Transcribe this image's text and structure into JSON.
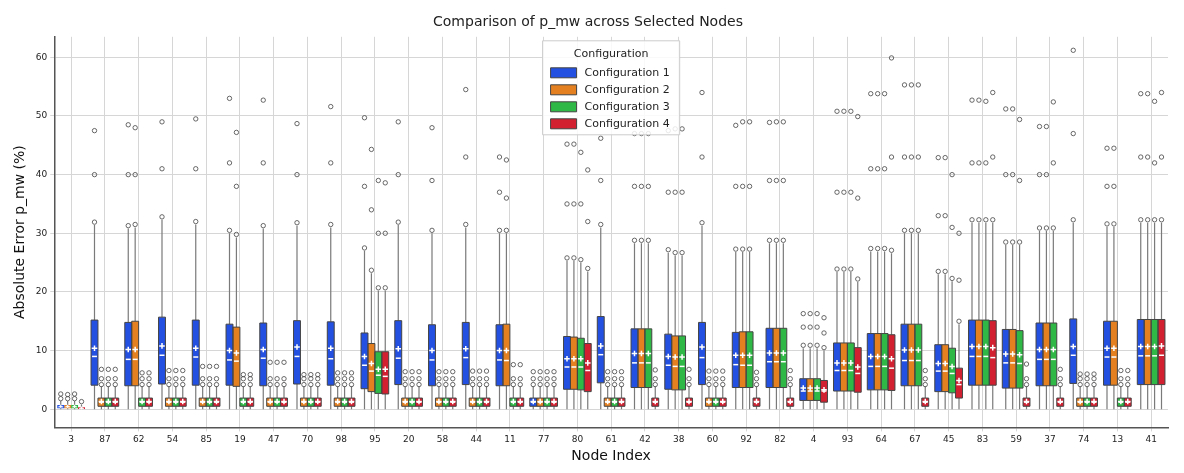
{
  "chart_data": {
    "type": "box",
    "title": "Comparison of p_mw across Selected Nodes",
    "xlabel": "Node Index",
    "ylabel": "Absolute Error p_mw (%)",
    "legend_title": "Configuration",
    "legend": "top",
    "grid": true,
    "categories": [
      "3",
      "87",
      "62",
      "54",
      "85",
      "19",
      "47",
      "70",
      "98",
      "95",
      "20",
      "58",
      "44",
      "11",
      "77",
      "80",
      "61",
      "42",
      "38",
      "60",
      "92",
      "82",
      "4",
      "93",
      "64",
      "67",
      "45",
      "83",
      "59",
      "37",
      "74",
      "13",
      "41"
    ],
    "ylim": [
      -3.1,
      63.5
    ],
    "yticks": [
      0,
      10,
      20,
      30,
      40,
      50,
      60
    ],
    "series": [
      {
        "name": "Configuration 1",
        "color": "#2350e0",
        "boxes": [
          {
            "low": 0,
            "q1": 0.15,
            "median": 0.4,
            "q3": 0.7,
            "high": 1.4,
            "mean": 0.5,
            "outliers": [
              1.8,
              2.6
            ]
          },
          {
            "low": 0,
            "q1": 4.1,
            "median": 9,
            "q3": 15.2,
            "high": 31.4,
            "mean": 10.4,
            "outliers": [
              31.9,
              40,
              47.5
            ]
          },
          {
            "low": 0,
            "q1": 4,
            "median": 8.5,
            "q3": 14.8,
            "high": 30.8,
            "mean": 10.2,
            "outliers": [
              31.3,
              40,
              48.5
            ]
          },
          {
            "low": 0,
            "q1": 4.3,
            "median": 9.2,
            "q3": 15.7,
            "high": 32.3,
            "mean": 10.8,
            "outliers": [
              32.8,
              41,
              49
            ]
          },
          {
            "low": 0,
            "q1": 4.1,
            "median": 8.9,
            "q3": 15.2,
            "high": 31.5,
            "mean": 10.4,
            "outliers": [
              32,
              41,
              49.5
            ]
          },
          {
            "low": 0,
            "q1": 4.1,
            "median": 8.4,
            "q3": 14.5,
            "high": 30,
            "mean": 10,
            "outliers": [
              30.5,
              42,
              53
            ]
          },
          {
            "low": 0,
            "q1": 4,
            "median": 8.7,
            "q3": 14.7,
            "high": 30.8,
            "mean": 10.2,
            "outliers": [
              31.3,
              42,
              52.7
            ]
          },
          {
            "low": 0,
            "q1": 4.3,
            "median": 9,
            "q3": 15.1,
            "high": 31.3,
            "mean": 10.6,
            "outliers": [
              31.8,
              40,
              48.7
            ]
          },
          {
            "low": 0,
            "q1": 4.1,
            "median": 8.6,
            "q3": 14.9,
            "high": 31,
            "mean": 10.4,
            "outliers": [
              31.5,
              42,
              51.6
            ]
          },
          {
            "low": 0,
            "q1": 3.5,
            "median": 7.5,
            "q3": 13,
            "high": 27,
            "mean": 9,
            "outliers": [
              27.5,
              38,
              49.7
            ]
          },
          {
            "low": 0,
            "q1": 4.2,
            "median": 8.7,
            "q3": 15.1,
            "high": 31.4,
            "mean": 10.3,
            "outliers": [
              31.9,
              40,
              49
            ]
          },
          {
            "low": 0,
            "q1": 4,
            "median": 8.4,
            "q3": 14.4,
            "high": 30,
            "mean": 10,
            "outliers": [
              30.5,
              39,
              48
            ]
          },
          {
            "low": 0,
            "q1": 4.2,
            "median": 8.8,
            "q3": 14.8,
            "high": 31,
            "mean": 10.3,
            "outliers": [
              31.5,
              43,
              54.5
            ]
          },
          {
            "low": 0,
            "q1": 4,
            "median": 8.4,
            "q3": 14.4,
            "high": 30,
            "mean": 10,
            "outliers": [
              30.5,
              37,
              43
            ]
          },
          {
            "low": 0,
            "q1": 0.5,
            "median": 1.2,
            "q3": 1.9,
            "high": 3.9,
            "mean": 1.3,
            "outliers": [
              4.2,
              5.2,
              6.4
            ]
          },
          {
            "low": 0,
            "q1": 3.4,
            "median": 7.2,
            "q3": 12.4,
            "high": 25.3,
            "mean": 8.6,
            "outliers": [
              25.8,
              35,
              45.2
            ]
          },
          {
            "low": 0,
            "q1": 4.5,
            "median": 9.3,
            "q3": 15.8,
            "high": 31,
            "mean": 10.8,
            "outliers": [
              31.5,
              39,
              46.2
            ]
          },
          {
            "low": 0,
            "q1": 3.7,
            "median": 7.9,
            "q3": 13.7,
            "high": 28.3,
            "mean": 9.5,
            "outliers": [
              28.8,
              38,
              47
            ]
          },
          {
            "low": 0,
            "q1": 3.4,
            "median": 7.5,
            "q3": 12.8,
            "high": 26.7,
            "mean": 9,
            "outliers": [
              27.2,
              37,
              47.5
            ]
          },
          {
            "low": 0,
            "q1": 4.2,
            "median": 8.8,
            "q3": 14.8,
            "high": 31.3,
            "mean": 10.6,
            "outliers": [
              31.8,
              43,
              54
            ]
          },
          {
            "low": 0,
            "q1": 3.7,
            "median": 7.6,
            "q3": 13.1,
            "high": 26.8,
            "mean": 9.2,
            "outliers": [
              27.3,
              38,
              48.4
            ]
          },
          {
            "low": 0,
            "q1": 3.7,
            "median": 8.1,
            "q3": 13.8,
            "high": 28.3,
            "mean": 9.6,
            "outliers": [
              28.8,
              39,
              48.9
            ]
          },
          {
            "low": 0,
            "q1": 1.5,
            "median": 3.1,
            "q3": 5.2,
            "high": 10.4,
            "mean": 3.6,
            "outliers": [
              10.9,
              14,
              16.3
            ]
          },
          {
            "low": 0,
            "q1": 3.1,
            "median": 6.6,
            "q3": 11.3,
            "high": 23.4,
            "mean": 7.9,
            "outliers": [
              23.9,
              37,
              50.8
            ]
          },
          {
            "low": 0,
            "q1": 3.3,
            "median": 7.3,
            "q3": 12.9,
            "high": 26.9,
            "mean": 9,
            "outliers": [
              27.4,
              41,
              53.8
            ]
          },
          {
            "low": 0,
            "q1": 4,
            "median": 8.3,
            "q3": 14.5,
            "high": 30,
            "mean": 10.1,
            "outliers": [
              30.5,
              43,
              55.3
            ]
          },
          {
            "low": 0,
            "q1": 3,
            "median": 6.5,
            "q3": 11,
            "high": 23,
            "mean": 7.8,
            "outliers": [
              23.5,
              33,
              42.9
            ]
          },
          {
            "low": 0,
            "q1": 4.1,
            "median": 9,
            "q3": 15.2,
            "high": 31.8,
            "mean": 10.7,
            "outliers": [
              32.3,
              42,
              52.7
            ]
          },
          {
            "low": 0,
            "q1": 3.6,
            "median": 7.9,
            "q3": 13.6,
            "high": 28,
            "mean": 9.4,
            "outliers": [
              28.5,
              40,
              51.2
            ]
          },
          {
            "low": 0,
            "q1": 4,
            "median": 8.5,
            "q3": 14.7,
            "high": 30.4,
            "mean": 10.2,
            "outliers": [
              30.9,
              40,
              48.2
            ]
          },
          {
            "low": 0,
            "q1": 4.4,
            "median": 9.2,
            "q3": 15.4,
            "high": 31.8,
            "mean": 10.7,
            "outliers": [
              32.3,
              47,
              61.2
            ]
          },
          {
            "low": 0,
            "q1": 4.1,
            "median": 8.9,
            "q3": 15,
            "high": 31.1,
            "mean": 10.4,
            "outliers": [
              31.6,
              38,
              44.5
            ]
          },
          {
            "low": 0,
            "q1": 4.2,
            "median": 9.1,
            "q3": 15.3,
            "high": 31.8,
            "mean": 10.7,
            "outliers": [
              32.3,
              43,
              53.8
            ]
          }
        ]
      },
      {
        "name": "Configuration 2",
        "color": "#e58020",
        "boxes": [
          {
            "low": 0,
            "q1": 0.15,
            "median": 0.4,
            "q3": 0.7,
            "high": 1.4,
            "mean": 0.5,
            "outliers": [
              1.8,
              2.5
            ]
          },
          {
            "low": 0,
            "q1": 0.5,
            "median": 1.2,
            "q3": 1.9,
            "high": 3.9,
            "mean": 1.3,
            "outliers": [
              4.2,
              5.2,
              6.8
            ]
          },
          {
            "low": 0,
            "q1": 4,
            "median": 8.5,
            "q3": 15,
            "high": 31,
            "mean": 10.2,
            "outliers": [
              31.5,
              40,
              48
            ]
          },
          {
            "low": 0,
            "q1": 0.5,
            "median": 1.2,
            "q3": 1.9,
            "high": 3.9,
            "mean": 1.3,
            "outliers": [
              4.2,
              5.2,
              6.6
            ]
          },
          {
            "low": 0,
            "q1": 0.5,
            "median": 1.2,
            "q3": 1.9,
            "high": 3.9,
            "mean": 1.3,
            "outliers": [
              4.2,
              5.2,
              7.3
            ]
          },
          {
            "low": 0,
            "q1": 3.9,
            "median": 8.2,
            "q3": 14,
            "high": 29.3,
            "mean": 9.6,
            "outliers": [
              29.8,
              38,
              47.2
            ]
          },
          {
            "low": 0,
            "q1": 0.5,
            "median": 1.2,
            "q3": 1.9,
            "high": 3.9,
            "mean": 1.3,
            "outliers": [
              4.2,
              5.2,
              8
            ]
          },
          {
            "low": 0,
            "q1": 0.5,
            "median": 1.2,
            "q3": 1.9,
            "high": 3.9,
            "mean": 1.3,
            "outliers": [
              4.2,
              5.2,
              5.9
            ]
          },
          {
            "low": 0,
            "q1": 0.5,
            "median": 1.2,
            "q3": 1.9,
            "high": 3.9,
            "mean": 1.3,
            "outliers": [
              4.2,
              5.2,
              6.2
            ]
          },
          {
            "low": 0,
            "q1": 3,
            "median": 6.5,
            "q3": 11.2,
            "high": 23.2,
            "mean": 7.8,
            "outliers": [
              23.7,
              34,
              44.3
            ]
          },
          {
            "low": 0,
            "q1": 0.5,
            "median": 1.2,
            "q3": 1.9,
            "high": 3.9,
            "mean": 1.3,
            "outliers": [
              4.2,
              5.2,
              6.4
            ]
          },
          {
            "low": 0,
            "q1": 0.5,
            "median": 1.2,
            "q3": 1.9,
            "high": 3.9,
            "mean": 1.3,
            "outliers": [
              4.2,
              5.2,
              6.4
            ]
          },
          {
            "low": 0,
            "q1": 0.5,
            "median": 1.2,
            "q3": 1.9,
            "high": 3.9,
            "mean": 1.3,
            "outliers": [
              4.2,
              5.2,
              6.5
            ]
          },
          {
            "low": 0,
            "q1": 4,
            "median": 8.3,
            "q3": 14.5,
            "high": 30,
            "mean": 10,
            "outliers": [
              30.5,
              36,
              42.5
            ]
          },
          {
            "low": 0,
            "q1": 0.5,
            "median": 1.2,
            "q3": 1.9,
            "high": 3.9,
            "mean": 1.3,
            "outliers": [
              4.2,
              5.2,
              6.4
            ]
          },
          {
            "low": 0,
            "q1": 3.4,
            "median": 7.2,
            "q3": 12.3,
            "high": 25.3,
            "mean": 8.6,
            "outliers": [
              25.8,
              35,
              45.2
            ]
          },
          {
            "low": 0,
            "q1": 0.5,
            "median": 1.2,
            "q3": 1.9,
            "high": 3.9,
            "mean": 1.3,
            "outliers": [
              4.2,
              5.2,
              6.4
            ]
          },
          {
            "low": 0,
            "q1": 3.7,
            "median": 7.9,
            "q3": 13.7,
            "high": 28.3,
            "mean": 9.5,
            "outliers": [
              28.8,
              38,
              47
            ]
          },
          {
            "low": 0,
            "q1": 3.3,
            "median": 7.3,
            "q3": 12.5,
            "high": 26.2,
            "mean": 8.9,
            "outliers": [
              26.7,
              37,
              47.8
            ]
          },
          {
            "low": 0,
            "q1": 0.5,
            "median": 1.2,
            "q3": 1.9,
            "high": 3.9,
            "mean": 1.3,
            "outliers": [
              4.2,
              5.2,
              6.5
            ]
          },
          {
            "low": 0,
            "q1": 3.7,
            "median": 7.5,
            "q3": 13.2,
            "high": 26.8,
            "mean": 9.2,
            "outliers": [
              27.3,
              38,
              49
            ]
          },
          {
            "low": 0,
            "q1": 3.7,
            "median": 8.1,
            "q3": 13.8,
            "high": 28.3,
            "mean": 9.6,
            "outliers": [
              28.8,
              39,
              49
            ]
          },
          {
            "low": 0,
            "q1": 1.5,
            "median": 3.1,
            "q3": 5.2,
            "high": 10.4,
            "mean": 3.6,
            "outliers": [
              10.9,
              14,
              16.3
            ]
          },
          {
            "low": 0,
            "q1": 3.1,
            "median": 6.6,
            "q3": 11.3,
            "high": 23.4,
            "mean": 7.9,
            "outliers": [
              23.9,
              37,
              50.8
            ]
          },
          {
            "low": 0,
            "q1": 3.3,
            "median": 7.3,
            "q3": 12.9,
            "high": 26.9,
            "mean": 9,
            "outliers": [
              27.4,
              41,
              53.8
            ]
          },
          {
            "low": 0,
            "q1": 4,
            "median": 8.3,
            "q3": 14.5,
            "high": 30,
            "mean": 10.1,
            "outliers": [
              30.5,
              43,
              55.3
            ]
          },
          {
            "low": 0,
            "q1": 3,
            "median": 6.5,
            "q3": 11,
            "high": 23,
            "mean": 7.8,
            "outliers": [
              23.5,
              33,
              42.9
            ]
          },
          {
            "low": 0,
            "q1": 4.1,
            "median": 9,
            "q3": 15.2,
            "high": 31.8,
            "mean": 10.7,
            "outliers": [
              32.3,
              42,
              52.7
            ]
          },
          {
            "low": 0,
            "q1": 3.6,
            "median": 7.9,
            "q3": 13.6,
            "high": 28,
            "mean": 9.4,
            "outliers": [
              28.5,
              40,
              51.2
            ]
          },
          {
            "low": 0,
            "q1": 4,
            "median": 8.5,
            "q3": 14.7,
            "high": 30.4,
            "mean": 10.2,
            "outliers": [
              30.9,
              40,
              48.2
            ]
          },
          {
            "low": 0,
            "q1": 0.5,
            "median": 1.2,
            "q3": 1.9,
            "high": 3.9,
            "mean": 1.3,
            "outliers": [
              4.2,
              5.2,
              6
            ]
          },
          {
            "low": 0,
            "q1": 4.1,
            "median": 8.9,
            "q3": 15,
            "high": 31.1,
            "mean": 10.4,
            "outliers": [
              31.6,
              38,
              44.5
            ]
          },
          {
            "low": 0,
            "q1": 4.2,
            "median": 9.1,
            "q3": 15.3,
            "high": 31.8,
            "mean": 10.7,
            "outliers": [
              32.3,
              43,
              53.8
            ]
          }
        ]
      },
      {
        "name": "Configuration 3",
        "color": "#2fb845",
        "boxes": [
          {
            "low": 0,
            "q1": 0.15,
            "median": 0.4,
            "q3": 0.7,
            "high": 1.4,
            "mean": 0.5,
            "outliers": [
              1.8,
              2.6
            ]
          },
          {
            "low": 0,
            "q1": 0.5,
            "median": 1.2,
            "q3": 1.9,
            "high": 3.9,
            "mean": 1.3,
            "outliers": [
              4.2,
              5.2,
              6.8
            ]
          },
          {
            "low": 0,
            "q1": 0.5,
            "median": 1.2,
            "q3": 1.9,
            "high": 3.9,
            "mean": 1.3,
            "outliers": [
              4.2,
              5.2,
              6.2
            ]
          },
          {
            "low": 0,
            "q1": 0.5,
            "median": 1.2,
            "q3": 1.9,
            "high": 3.9,
            "mean": 1.3,
            "outliers": [
              4.2,
              5.2,
              6.6
            ]
          },
          {
            "low": 0,
            "q1": 0.5,
            "median": 1.2,
            "q3": 1.9,
            "high": 3.9,
            "mean": 1.3,
            "outliers": [
              4.2,
              5.2,
              7.3
            ]
          },
          {
            "low": 0,
            "q1": 0.5,
            "median": 1.2,
            "q3": 1.9,
            "high": 3.9,
            "mean": 1.3,
            "outliers": [
              4.2,
              5.2,
              5.9
            ]
          },
          {
            "low": 0,
            "q1": 0.5,
            "median": 1.2,
            "q3": 1.9,
            "high": 3.9,
            "mean": 1.3,
            "outliers": [
              4.2,
              5.2,
              8
            ]
          },
          {
            "low": 0,
            "q1": 0.5,
            "median": 1.2,
            "q3": 1.9,
            "high": 3.9,
            "mean": 1.3,
            "outliers": [
              4.2,
              5.2,
              5.9
            ]
          },
          {
            "low": 0,
            "q1": 0.5,
            "median": 1.2,
            "q3": 1.9,
            "high": 3.9,
            "mean": 1.3,
            "outliers": [
              4.2,
              5.2,
              6.2
            ]
          },
          {
            "low": 0,
            "q1": 2.7,
            "median": 5.8,
            "q3": 9.8,
            "high": 20.2,
            "mean": 6.8,
            "outliers": [
              20.7,
              30,
              39
            ]
          },
          {
            "low": 0,
            "q1": 0.5,
            "median": 1.2,
            "q3": 1.9,
            "high": 3.9,
            "mean": 1.3,
            "outliers": [
              4.2,
              5.2,
              6.4
            ]
          },
          {
            "low": 0,
            "q1": 0.5,
            "median": 1.2,
            "q3": 1.9,
            "high": 3.9,
            "mean": 1.3,
            "outliers": [
              4.2,
              5.2,
              6.4
            ]
          },
          {
            "low": 0,
            "q1": 0.5,
            "median": 1.2,
            "q3": 1.9,
            "high": 3.9,
            "mean": 1.3,
            "outliers": [
              4.2,
              5.2,
              6.5
            ]
          },
          {
            "low": 0,
            "q1": 0.5,
            "median": 1.2,
            "q3": 1.9,
            "high": 3.9,
            "mean": 1.3,
            "outliers": [
              4.2,
              5.2,
              7.6
            ]
          },
          {
            "low": 0,
            "q1": 0.5,
            "median": 1.2,
            "q3": 1.9,
            "high": 3.9,
            "mean": 1.3,
            "outliers": [
              4.2,
              5.2,
              6.4
            ]
          },
          {
            "low": 0,
            "q1": 3.3,
            "median": 7.2,
            "q3": 12.1,
            "high": 25,
            "mean": 8.6,
            "outliers": [
              25.5,
              35,
              43.8
            ]
          },
          {
            "low": 0,
            "q1": 0.5,
            "median": 1.2,
            "q3": 1.9,
            "high": 3.9,
            "mean": 1.3,
            "outliers": [
              4.2,
              5.2,
              6.4
            ]
          },
          {
            "low": 0,
            "q1": 3.7,
            "median": 7.9,
            "q3": 13.7,
            "high": 28.3,
            "mean": 9.5,
            "outliers": [
              28.8,
              38,
              47
            ]
          },
          {
            "low": 0,
            "q1": 3.3,
            "median": 7.3,
            "q3": 12.5,
            "high": 26.2,
            "mean": 8.9,
            "outliers": [
              26.7,
              37,
              47.8
            ]
          },
          {
            "low": 0,
            "q1": 0.5,
            "median": 1.2,
            "q3": 1.9,
            "high": 3.9,
            "mean": 1.3,
            "outliers": [
              4.2,
              5.2,
              6.5
            ]
          },
          {
            "low": 0,
            "q1": 3.7,
            "median": 7.5,
            "q3": 13.2,
            "high": 26.8,
            "mean": 9.2,
            "outliers": [
              27.3,
              38,
              49
            ]
          },
          {
            "low": 0,
            "q1": 3.7,
            "median": 8.1,
            "q3": 13.8,
            "high": 28.3,
            "mean": 9.6,
            "outliers": [
              28.8,
              39,
              49
            ]
          },
          {
            "low": 0,
            "q1": 1.5,
            "median": 3.1,
            "q3": 5.2,
            "high": 10.4,
            "mean": 3.6,
            "outliers": [
              10.9,
              14,
              16.3
            ]
          },
          {
            "low": 0,
            "q1": 3.1,
            "median": 6.6,
            "q3": 11.3,
            "high": 23.4,
            "mean": 7.9,
            "outliers": [
              23.9,
              37,
              50.8
            ]
          },
          {
            "low": 0,
            "q1": 3.3,
            "median": 7.3,
            "q3": 12.9,
            "high": 26.9,
            "mean": 9,
            "outliers": [
              27.4,
              41,
              53.8
            ]
          },
          {
            "low": 0,
            "q1": 4,
            "median": 8.3,
            "q3": 14.5,
            "high": 30,
            "mean": 10.1,
            "outliers": [
              30.5,
              43,
              55.3
            ]
          },
          {
            "low": 0,
            "q1": 2.8,
            "median": 6.1,
            "q3": 10.4,
            "high": 21.8,
            "mean": 7.3,
            "outliers": [
              22.3,
              31,
              40
            ]
          },
          {
            "low": 0,
            "q1": 4.1,
            "median": 9,
            "q3": 15.2,
            "high": 31.8,
            "mean": 10.7,
            "outliers": [
              32.3,
              42,
              52.5
            ]
          },
          {
            "low": 0,
            "q1": 3.6,
            "median": 7.8,
            "q3": 13.4,
            "high": 28,
            "mean": 9.3,
            "outliers": [
              28.5,
              39,
              49.4
            ]
          },
          {
            "low": 0,
            "q1": 4,
            "median": 8.5,
            "q3": 14.7,
            "high": 30.4,
            "mean": 10.2,
            "outliers": [
              30.9,
              42,
              52.4
            ]
          },
          {
            "low": 0,
            "q1": 0.5,
            "median": 1.2,
            "q3": 1.9,
            "high": 3.9,
            "mean": 1.3,
            "outliers": [
              4.2,
              5.2,
              6
            ]
          },
          {
            "low": 0,
            "q1": 0.5,
            "median": 1.2,
            "q3": 1.9,
            "high": 3.9,
            "mean": 1.3,
            "outliers": [
              4.2,
              5.2,
              6.6
            ]
          },
          {
            "low": 0,
            "q1": 4.2,
            "median": 9.1,
            "q3": 15.3,
            "high": 31.8,
            "mean": 10.7,
            "outliers": [
              32.3,
              42,
              52.5
            ]
          }
        ]
      },
      {
        "name": "Configuration 4",
        "color": "#d22030",
        "boxes": [
          {
            "low": 0,
            "q1": 0.05,
            "median": 0.15,
            "q3": 0.35,
            "high": 0.8,
            "mean": 0.2,
            "outliers": [
              1.3
            ]
          },
          {
            "low": 0,
            "q1": 0.5,
            "median": 1.2,
            "q3": 1.9,
            "high": 3.9,
            "mean": 1.3,
            "outliers": [
              4.2,
              5.2,
              6.8
            ]
          },
          {
            "low": 0,
            "q1": 0.5,
            "median": 1.2,
            "q3": 1.9,
            "high": 3.9,
            "mean": 1.3,
            "outliers": [
              4.2,
              5.2,
              6.2
            ]
          },
          {
            "low": 0,
            "q1": 0.5,
            "median": 1.2,
            "q3": 1.9,
            "high": 3.9,
            "mean": 1.3,
            "outliers": [
              4.2,
              5.2,
              6.6
            ]
          },
          {
            "low": 0,
            "q1": 0.5,
            "median": 1.2,
            "q3": 1.9,
            "high": 3.9,
            "mean": 1.3,
            "outliers": [
              4.2,
              5.2,
              7.3
            ]
          },
          {
            "low": 0,
            "q1": 0.5,
            "median": 1.2,
            "q3": 1.9,
            "high": 3.9,
            "mean": 1.3,
            "outliers": [
              4.2,
              5.2,
              5.9
            ]
          },
          {
            "low": 0,
            "q1": 0.5,
            "median": 1.2,
            "q3": 1.9,
            "high": 3.9,
            "mean": 1.3,
            "outliers": [
              4.2,
              5.2,
              8
            ]
          },
          {
            "low": 0,
            "q1": 0.5,
            "median": 1.2,
            "q3": 1.9,
            "high": 3.9,
            "mean": 1.3,
            "outliers": [
              4.2,
              5.2,
              5.9
            ]
          },
          {
            "low": 0,
            "q1": 0.5,
            "median": 1.2,
            "q3": 1.9,
            "high": 3.9,
            "mean": 1.3,
            "outliers": [
              4.2,
              5.2,
              6.2
            ]
          },
          {
            "low": 0,
            "q1": 2.6,
            "median": 5.6,
            "q3": 9.8,
            "high": 20.2,
            "mean": 6.8,
            "outliers": [
              20.7,
              30,
              38.6
            ]
          },
          {
            "low": 0,
            "q1": 0.5,
            "median": 1.2,
            "q3": 1.9,
            "high": 3.9,
            "mean": 1.3,
            "outliers": [
              4.2,
              5.2,
              6.4
            ]
          },
          {
            "low": 0,
            "q1": 0.5,
            "median": 1.2,
            "q3": 1.9,
            "high": 3.9,
            "mean": 1.3,
            "outliers": [
              4.2,
              5.2,
              6.4
            ]
          },
          {
            "low": 0,
            "q1": 0.5,
            "median": 1.2,
            "q3": 1.9,
            "high": 3.9,
            "mean": 1.3,
            "outliers": [
              4.2,
              5.2,
              6.5
            ]
          },
          {
            "low": 0,
            "q1": 0.5,
            "median": 1.2,
            "q3": 1.9,
            "high": 3.9,
            "mean": 1.3,
            "outliers": [
              4.2,
              5.2,
              7.6
            ]
          },
          {
            "low": 0,
            "q1": 0.5,
            "median": 1.2,
            "q3": 1.9,
            "high": 3.9,
            "mean": 1.3,
            "outliers": [
              4.2,
              5.2,
              6.4
            ]
          },
          {
            "low": 0,
            "q1": 3,
            "median": 6.6,
            "q3": 11.2,
            "high": 23.5,
            "mean": 7.9,
            "outliers": [
              24,
              32,
              40.8
            ]
          },
          {
            "low": 0,
            "q1": 0.5,
            "median": 1.2,
            "q3": 1.9,
            "high": 3.9,
            "mean": 1.3,
            "outliers": [
              4.2,
              5.2,
              6.4
            ]
          },
          {
            "low": 0,
            "q1": 0.5,
            "median": 1.2,
            "q3": 1.9,
            "high": 3.9,
            "mean": 1.3,
            "outliers": [
              4.2,
              5.2,
              6.7
            ]
          },
          {
            "low": 0,
            "q1": 0.5,
            "median": 1.2,
            "q3": 1.9,
            "high": 3.9,
            "mean": 1.3,
            "outliers": [
              4.2,
              5.2,
              6.8
            ]
          },
          {
            "low": 0,
            "q1": 0.5,
            "median": 1.2,
            "q3": 1.9,
            "high": 3.9,
            "mean": 1.3,
            "outliers": [
              4.2,
              5.2,
              6.5
            ]
          },
          {
            "low": 0,
            "q1": 0.5,
            "median": 1.2,
            "q3": 1.9,
            "high": 3.9,
            "mean": 1.3,
            "outliers": [
              4.2,
              5.2,
              6.3
            ]
          },
          {
            "low": 0,
            "q1": 0.5,
            "median": 1.2,
            "q3": 1.9,
            "high": 3.9,
            "mean": 1.3,
            "outliers": [
              4.2,
              5.2,
              6.6
            ]
          },
          {
            "low": 0,
            "q1": 1.2,
            "median": 3.1,
            "q3": 4.9,
            "high": 10,
            "mean": 3.3,
            "outliers": [
              10.5,
              13,
              15.6
            ]
          },
          {
            "low": 0,
            "q1": 2.9,
            "median": 6.1,
            "q3": 10.5,
            "high": 21.7,
            "mean": 7.2,
            "outliers": [
              22.2,
              36,
              49.9
            ]
          },
          {
            "low": 0,
            "q1": 3.2,
            "median": 7,
            "q3": 12.7,
            "high": 26.6,
            "mean": 8.6,
            "outliers": [
              27.1,
              43,
              59.9
            ]
          },
          {
            "low": 0,
            "q1": 0.5,
            "median": 1.2,
            "q3": 1.9,
            "high": 3.9,
            "mean": 1.3,
            "outliers": [
              4.2,
              5.2,
              6.6
            ]
          },
          {
            "low": 0,
            "q1": 1.9,
            "median": 4.2,
            "q3": 7,
            "high": 14.5,
            "mean": 4.9,
            "outliers": [
              15,
              22,
              30
            ]
          },
          {
            "low": 0,
            "q1": 4.1,
            "median": 8.8,
            "q3": 15.1,
            "high": 31.8,
            "mean": 10.5,
            "outliers": [
              32.3,
              43,
              54
            ]
          },
          {
            "low": 0,
            "q1": 0.5,
            "median": 1.2,
            "q3": 1.9,
            "high": 3.9,
            "mean": 1.3,
            "outliers": [
              4.2,
              5.2,
              7.7
            ]
          },
          {
            "low": 0,
            "q1": 0.5,
            "median": 1.2,
            "q3": 1.9,
            "high": 3.9,
            "mean": 1.3,
            "outliers": [
              4.2,
              5.2,
              6.8
            ]
          },
          {
            "low": 0,
            "q1": 0.5,
            "median": 1.2,
            "q3": 1.9,
            "high": 3.9,
            "mean": 1.3,
            "outliers": [
              4.2,
              5.2,
              6
            ]
          },
          {
            "low": 0,
            "q1": 0.5,
            "median": 1.2,
            "q3": 1.9,
            "high": 3.9,
            "mean": 1.3,
            "outliers": [
              4.2,
              5.2,
              6.6
            ]
          },
          {
            "low": 0,
            "q1": 4.2,
            "median": 9.2,
            "q3": 15.3,
            "high": 31.8,
            "mean": 10.8,
            "outliers": [
              32.3,
              43,
              54
            ]
          }
        ]
      }
    ]
  }
}
